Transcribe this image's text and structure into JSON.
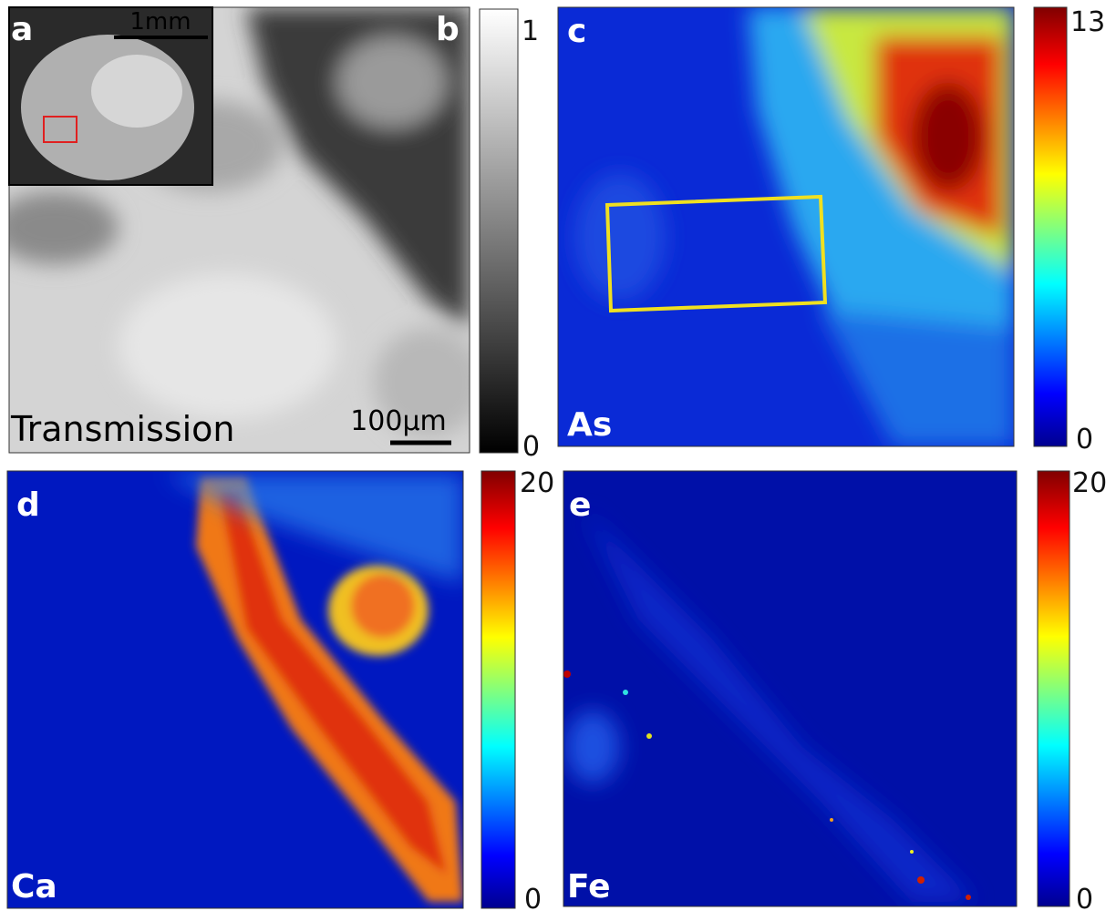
{
  "panels": [
    {
      "label": "a",
      "scale_bar": "1mm"
    },
    {
      "label": "b",
      "title": "Transmission",
      "scale_bar": "100µm",
      "colorbar": {
        "max": 1,
        "min": 0
      }
    },
    {
      "label": "c",
      "element": "As",
      "colorbar": {
        "max": 13,
        "min": 0
      }
    },
    {
      "label": "d",
      "element": "Ca",
      "colorbar": {
        "max": 20,
        "min": 0
      }
    },
    {
      "label": "e",
      "element": "Fe",
      "colorbar": {
        "max": 20,
        "min": 0
      }
    }
  ]
}
